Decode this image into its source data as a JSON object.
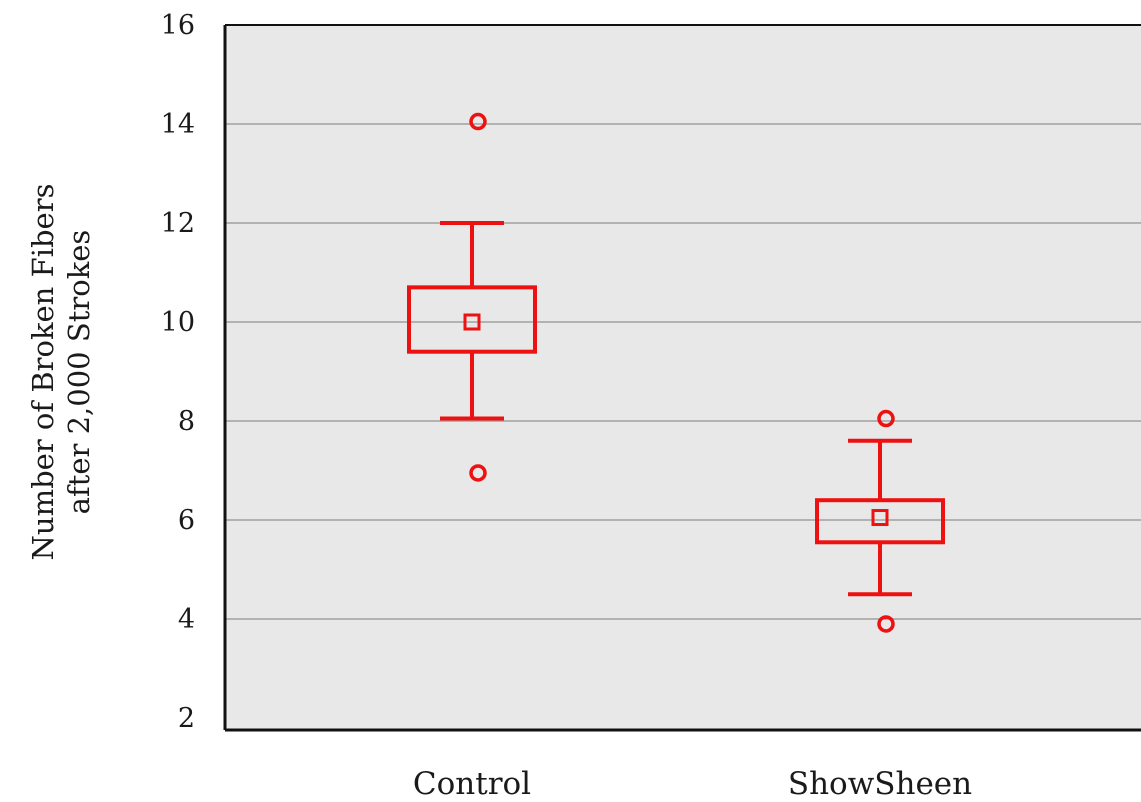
{
  "chart_data": {
    "type": "box",
    "categories": [
      "Control",
      "ShowSheen"
    ],
    "ylabel_lines": [
      "Number of Broken Fibers",
      "after 2,000 Strokes"
    ],
    "ylim": [
      2,
      16
    ],
    "yticks": [
      2,
      4,
      6,
      8,
      10,
      12,
      14,
      16
    ],
    "grid": true,
    "colors": {
      "plot_background": "#e8e8e8",
      "grid": "#a0a0a0",
      "box": "#ee1111",
      "axis": "#111111"
    },
    "boxes": [
      {
        "category": "Control",
        "whisker_low": 8.05,
        "q1": 9.4,
        "mean": 10.0,
        "q3": 10.7,
        "whisker_high": 12.0,
        "outliers": [
          14.05,
          6.95
        ]
      },
      {
        "category": "ShowSheen",
        "whisker_low": 4.5,
        "q1": 5.55,
        "mean": 6.05,
        "q3": 6.4,
        "whisker_high": 7.6,
        "outliers": [
          8.05,
          3.9
        ]
      }
    ]
  }
}
